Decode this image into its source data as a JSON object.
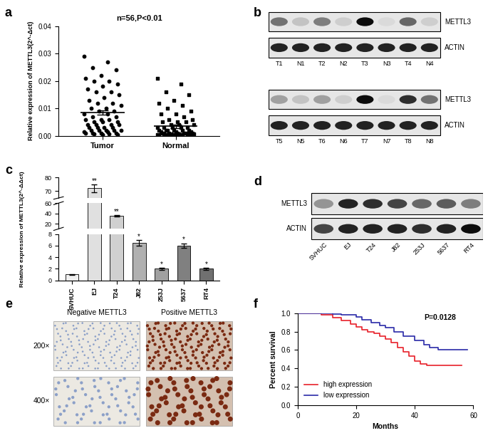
{
  "chart_data": [
    {
      "panel": "a",
      "type": "scatter",
      "title": "n=56,P<0.01",
      "y_label": "Relative expression of METTL3(2^-Δct)",
      "ylim": [
        0,
        0.04
      ],
      "yticks": [
        {
          "value": 0,
          "label": "0.00"
        },
        {
          "value": 0.01,
          "label": "0.01"
        },
        {
          "value": 0.02,
          "label": "0.02"
        },
        {
          "value": 0.03,
          "label": "0.03"
        },
        {
          "value": 0.04,
          "label": "0.04"
        }
      ],
      "series": [
        {
          "name": "Tumor",
          "marker": "o",
          "color": "#000000",
          "mean": 0.0085,
          "sem": 0.0009,
          "values": [
            0.029,
            0.027,
            0.025,
            0.024,
            0.022,
            0.021,
            0.02,
            0.02,
            0.019,
            0.018,
            0.017,
            0.016,
            0.016,
            0.015,
            0.014,
            0.013,
            0.012,
            0.012,
            0.011,
            0.01,
            0.01,
            0.009,
            0.009,
            0.008,
            0.008,
            0.007,
            0.007,
            0.006,
            0.006,
            0.006,
            0.005,
            0.005,
            0.005,
            0.004,
            0.004,
            0.004,
            0.004,
            0.003,
            0.003,
            0.003,
            0.003,
            0.002,
            0.002,
            0.002,
            0.002,
            0.002,
            0.0015,
            0.0015,
            0.001,
            0.001,
            0.001,
            0.001,
            0.0008,
            0.0006,
            0.0005,
            0.0003
          ]
        },
        {
          "name": "Normal",
          "marker": "s",
          "color": "#000000",
          "mean": 0.0035,
          "sem": 0.0006,
          "values": [
            0.021,
            0.019,
            0.016,
            0.015,
            0.013,
            0.012,
            0.011,
            0.01,
            0.009,
            0.008,
            0.008,
            0.007,
            0.006,
            0.006,
            0.005,
            0.005,
            0.005,
            0.004,
            0.004,
            0.004,
            0.003,
            0.003,
            0.003,
            0.003,
            0.003,
            0.002,
            0.002,
            0.002,
            0.002,
            0.002,
            0.002,
            0.0015,
            0.0015,
            0.0015,
            0.001,
            0.001,
            0.001,
            0.001,
            0.001,
            0.001,
            0.0008,
            0.0008,
            0.0007,
            0.0006,
            0.0006,
            0.0005,
            0.0005,
            0.0004,
            0.0004,
            0.0003,
            0.0003,
            0.0002,
            0.0002,
            0.0002,
            0.0001,
            0.0001
          ]
        }
      ]
    },
    {
      "panel": "b",
      "type": "western_blot",
      "blots": [
        {
          "lanes": [
            "T1",
            "N1",
            "T2",
            "N2",
            "T3",
            "N3",
            "T4",
            "N4"
          ],
          "bands": [
            {
              "name": "METTL3",
              "values": [
                0.5,
                0.15,
                0.45,
                0.1,
                0.95,
                0.05,
                0.55,
                0.1
              ]
            },
            {
              "name": "ACTIN",
              "values": [
                0.85,
                0.85,
                0.85,
                0.85,
                0.85,
                0.85,
                0.85,
                0.85
              ]
            }
          ]
        },
        {
          "lanes": [
            "T5",
            "N5",
            "T6",
            "N6",
            "T7",
            "N7",
            "T8",
            "N8"
          ],
          "bands": [
            {
              "name": "METTL3",
              "values": [
                0.3,
                0.15,
                0.3,
                0.1,
                0.95,
                0.05,
                0.8,
                0.5
              ]
            },
            {
              "name": "ACTIN",
              "values": [
                0.85,
                0.85,
                0.85,
                0.85,
                0.85,
                0.85,
                0.85,
                0.85
              ]
            }
          ]
        }
      ]
    },
    {
      "panel": "c",
      "type": "bar",
      "y_label": "Relative expression of METTL3(2^-ΔΔct)",
      "categories": [
        "SVHUC",
        "EJ",
        "T24",
        "J82",
        "253J",
        "5637",
        "RT4"
      ],
      "values": [
        1,
        72,
        35,
        6.5,
        2,
        6,
        2
      ],
      "errors": [
        0.1,
        3,
        1.5,
        0.5,
        0.2,
        0.4,
        0.2
      ],
      "significance": [
        null,
        "**",
        "**",
        "*",
        "*",
        "*",
        "*"
      ],
      "colors": [
        "#f0f0f0",
        "#e0e0e0",
        "#d0d0d0",
        "#b0b0b0",
        "#a0a0a0",
        "#808080",
        "#707070"
      ],
      "axis_segments": [
        {
          "ylim": [
            0,
            8
          ],
          "yticks": [
            0,
            2,
            4,
            6,
            8
          ]
        },
        {
          "ylim": [
            10,
            60
          ],
          "yticks": [
            20,
            40,
            60
          ]
        },
        {
          "ylim": [
            65,
            80
          ],
          "yticks": [
            70,
            80
          ]
        }
      ]
    },
    {
      "panel": "d",
      "type": "western_blot",
      "blots": [
        {
          "lanes": [
            "SVHUC",
            "EJ",
            "T24",
            "J82",
            "253J",
            "5637",
            "RT4"
          ],
          "bands": [
            {
              "name": "METTL3",
              "values": [
                0.35,
                0.85,
                0.8,
                0.7,
                0.55,
                0.6,
                0.45
              ]
            },
            {
              "name": "ACTIN",
              "values": [
                0.7,
                0.85,
                0.85,
                0.85,
                0.8,
                0.85,
                0.95
              ]
            }
          ]
        }
      ]
    },
    {
      "panel": "e",
      "type": "image_grid",
      "columns": [
        "Negative METTL3",
        "Positive METTL3"
      ],
      "rows": [
        "200×",
        "400×"
      ]
    },
    {
      "panel": "f",
      "type": "line",
      "line_style": "steps",
      "x_label": "Months",
      "y_label": "Percent survival",
      "annotation": "P=0.0128",
      "xlim": [
        0,
        60
      ],
      "xticks": [
        0,
        20,
        40,
        60
      ],
      "ylim": [
        0,
        1.0
      ],
      "yticks": [
        {
          "value": 0,
          "label": "0.0"
        },
        {
          "value": 0.2,
          "label": "0.2"
        },
        {
          "value": 0.4,
          "label": "0.4"
        },
        {
          "value": 0.6,
          "label": "0.6"
        },
        {
          "value": 0.8,
          "label": "0.8"
        },
        {
          "value": 1.0,
          "label": "1.0"
        }
      ],
      "legend": "lower left",
      "series": [
        {
          "name": "high expression",
          "color": "#e8202a",
          "x": [
            0,
            8,
            12,
            15,
            18,
            20,
            22,
            24,
            26,
            28,
            30,
            32,
            34,
            36,
            38,
            40,
            42,
            44,
            56
          ],
          "values": [
            1.0,
            0.98,
            0.95,
            0.92,
            0.88,
            0.85,
            0.82,
            0.8,
            0.78,
            0.75,
            0.72,
            0.68,
            0.63,
            0.58,
            0.53,
            0.48,
            0.45,
            0.43,
            0.43
          ]
        },
        {
          "name": "low expression",
          "color": "#2a2aa8",
          "x": [
            0,
            12,
            15,
            20,
            22,
            25,
            28,
            30,
            33,
            36,
            40,
            43,
            45,
            48,
            58
          ],
          "values": [
            1.0,
            0.99,
            0.98,
            0.96,
            0.93,
            0.9,
            0.87,
            0.84,
            0.8,
            0.75,
            0.7,
            0.66,
            0.63,
            0.6,
            0.6
          ]
        }
      ]
    }
  ]
}
